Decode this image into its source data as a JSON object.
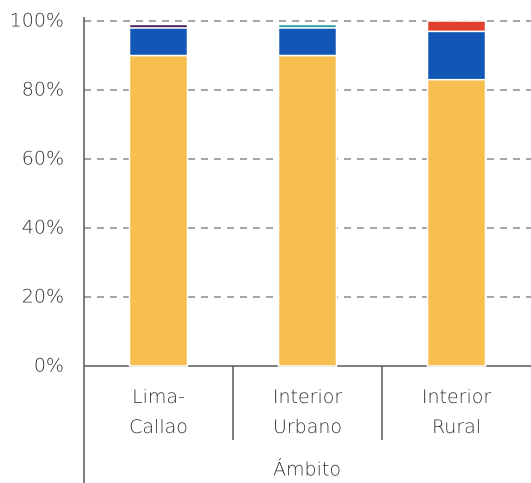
{
  "chart_data": {
    "type": "stacked_bar",
    "categories": [
      "Lima-\nCallao",
      "Interior\nUrbano",
      "Interior\nRural"
    ],
    "x_label": "Ámbito",
    "series": [
      {
        "color": "#f7bf4f",
        "values": [
          90,
          90,
          83
        ]
      },
      {
        "color": "#1257b5",
        "values": [
          8,
          8,
          14
        ]
      },
      {
        "color": "#4a1f5c",
        "values": [
          1,
          0,
          0
        ]
      },
      {
        "color": "#2aa3a3",
        "values": [
          0,
          1,
          0
        ]
      },
      {
        "color": "#e2402f",
        "values": [
          0,
          0,
          3
        ]
      }
    ],
    "ylim": [
      0,
      100
    ],
    "yticks": [
      {
        "value": 0,
        "label": "0%"
      },
      {
        "value": 20,
        "label": "20%"
      },
      {
        "value": 40,
        "label": "40%"
      },
      {
        "value": 60,
        "label": "60%"
      },
      {
        "value": 80,
        "label": "80%"
      },
      {
        "value": 100,
        "label": "100%"
      }
    ],
    "grid": true
  }
}
